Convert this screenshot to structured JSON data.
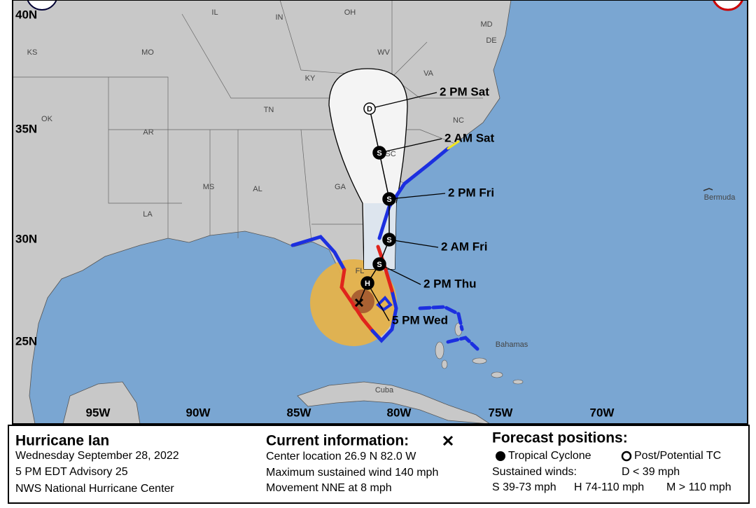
{
  "map": {
    "lat_labels": [
      "40N",
      "35N",
      "30N",
      "25N"
    ],
    "lon_labels": [
      "95W",
      "90W",
      "85W",
      "80W",
      "75W",
      "70W"
    ],
    "places": [
      "KS",
      "MO",
      "IL",
      "IN",
      "OH",
      "WV",
      "VA",
      "KY",
      "TN",
      "NC",
      "SC",
      "GA",
      "AL",
      "MS",
      "AR",
      "LA",
      "OK",
      "FL",
      "MD",
      "DE",
      "Bermuda",
      "Bahamas",
      "Cuba"
    ],
    "forecast_points": [
      {
        "symbol": "D",
        "time": "2 PM Sat"
      },
      {
        "symbol": "S",
        "time": "2 AM Sat"
      },
      {
        "symbol": "S",
        "time": "2 PM Fri"
      },
      {
        "symbol": "S",
        "time": "2 AM Fri"
      },
      {
        "symbol": "S",
        "time": "2 PM Thu"
      },
      {
        "symbol": "H",
        "time": "5 PM Wed"
      }
    ]
  },
  "legend": {
    "storm_name": "Hurricane Ian",
    "date": "Wednesday September 28, 2022",
    "advisory": "5 PM EDT Advisory 25",
    "issuer": "NWS National Hurricane Center",
    "current_title": "Current information:",
    "current_lines": [
      "Center location 26.9 N 82.0 W",
      "Maximum sustained wind 140 mph",
      "Movement NNE at 8 mph"
    ],
    "forecast_title": "Forecast positions:",
    "tropical": "Tropical Cyclone",
    "post": "Post/Potential TC",
    "sustained": "Sustained winds:",
    "d_range": "D < 39 mph",
    "s_range": "S 39-73 mph",
    "h_range": "H 74-110 mph",
    "m_range": "M > 110 mph"
  }
}
